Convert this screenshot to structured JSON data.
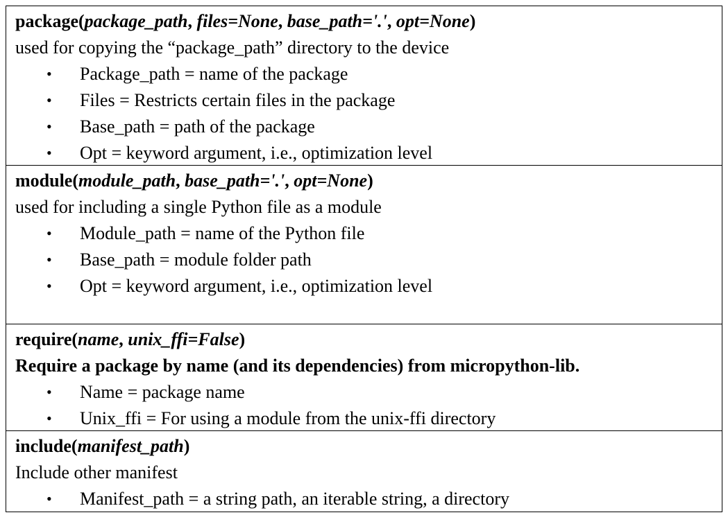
{
  "entries": [
    {
      "signature": {
        "name": "package",
        "open": "(",
        "parts": [
          {
            "text": "package_path",
            "italic": true
          },
          {
            "text": ", ",
            "italic": false
          },
          {
            "text": "files=None",
            "italic": true
          },
          {
            "text": ", ",
            "italic": false
          },
          {
            "text": "base_path='.'",
            "italic": true
          },
          {
            "text": ", ",
            "italic": false
          },
          {
            "text": "opt=None",
            "italic": true
          }
        ],
        "close": ")"
      },
      "description": "used for copying the “package_path” directory to the device",
      "description_bold": false,
      "params": [
        "Package_path = name of the package",
        "Files = Restricts certain files in the package",
        "Base_path = path of the package",
        "Opt = keyword argument, i.e., optimization level"
      ]
    },
    {
      "signature": {
        "name": "module",
        "open": "(",
        "parts": [
          {
            "text": "module_path",
            "italic": true
          },
          {
            "text": ", ",
            "italic": false
          },
          {
            "text": "base_path='.'",
            "italic": true
          },
          {
            "text": ", ",
            "italic": false
          },
          {
            "text": "opt=None",
            "italic": true
          }
        ],
        "close": ")"
      },
      "description": "used for including a single Python file as a module",
      "description_bold": false,
      "params": [
        "Module_path = name of the Python file",
        "Base_path = module folder path",
        "Opt = keyword argument, i.e., optimization level"
      ]
    },
    {
      "signature": {
        "name": "require",
        "open": "(",
        "parts": [
          {
            "text": "name",
            "italic": true
          },
          {
            "text": ", ",
            "italic": false
          },
          {
            "text": "unix_ffi=False",
            "italic": true
          }
        ],
        "close": ")"
      },
      "description": "Require a package by name (and its dependencies) from micropython-lib.",
      "description_bold": true,
      "params": [
        "Name = package name",
        "Unix_ffi = For using a module from the unix-ffi directory"
      ]
    },
    {
      "signature": {
        "name": "include",
        "open": "(",
        "parts": [
          {
            "text": "manifest_path",
            "italic": true
          }
        ],
        "close": ")"
      },
      "description": "Include other manifest",
      "description_bold": false,
      "params": [
        "Manifest_path = a string path, an iterable string, a directory"
      ]
    }
  ],
  "bullet_glyph": "•"
}
